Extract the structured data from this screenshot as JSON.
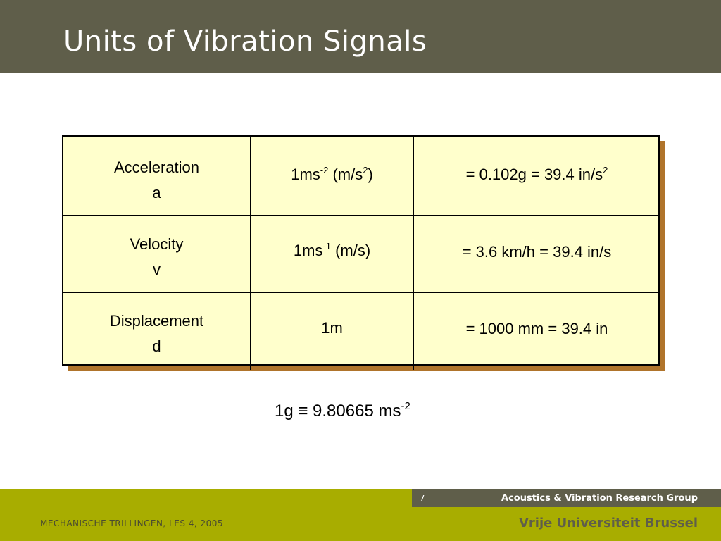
{
  "slide": {
    "title": "Units of Vibration Signals"
  },
  "table": {
    "rows": [
      {
        "quantity": "Acceleration",
        "symbol": "a",
        "unit_base": "1ms",
        "unit_exp": "-2",
        "unit_paren_open": " (m/s",
        "unit_paren_exp": "2",
        "unit_paren_close": ")",
        "equiv_base": "= 0.102g = 39.4 in/s",
        "equiv_exp": "2"
      },
      {
        "quantity": "Velocity",
        "symbol": "v",
        "unit_base": "1ms",
        "unit_exp": "-1",
        "unit_rest": " (m/s)",
        "equiv": "= 3.6 km/h = 39.4 in/s"
      },
      {
        "quantity": "Displacement",
        "symbol": "d",
        "unit": "1m",
        "equiv": "= 1000 mm = 39.4 in"
      }
    ]
  },
  "formula": {
    "base": "1g ≡ 9.80665 ms",
    "exp": "-2"
  },
  "footer": {
    "page_number": "7",
    "group": "Acoustics & Vibration Research Group",
    "course": "MECHANISCHE TRILLINGEN, LES 4, 2005",
    "university": "Vrije Universiteit Brussel"
  },
  "colors": {
    "title_bar": "#5f5e4a",
    "footer_bar": "#a8ad00",
    "table_fill": "#ffffcc",
    "table_shadow": "#b0742b"
  }
}
